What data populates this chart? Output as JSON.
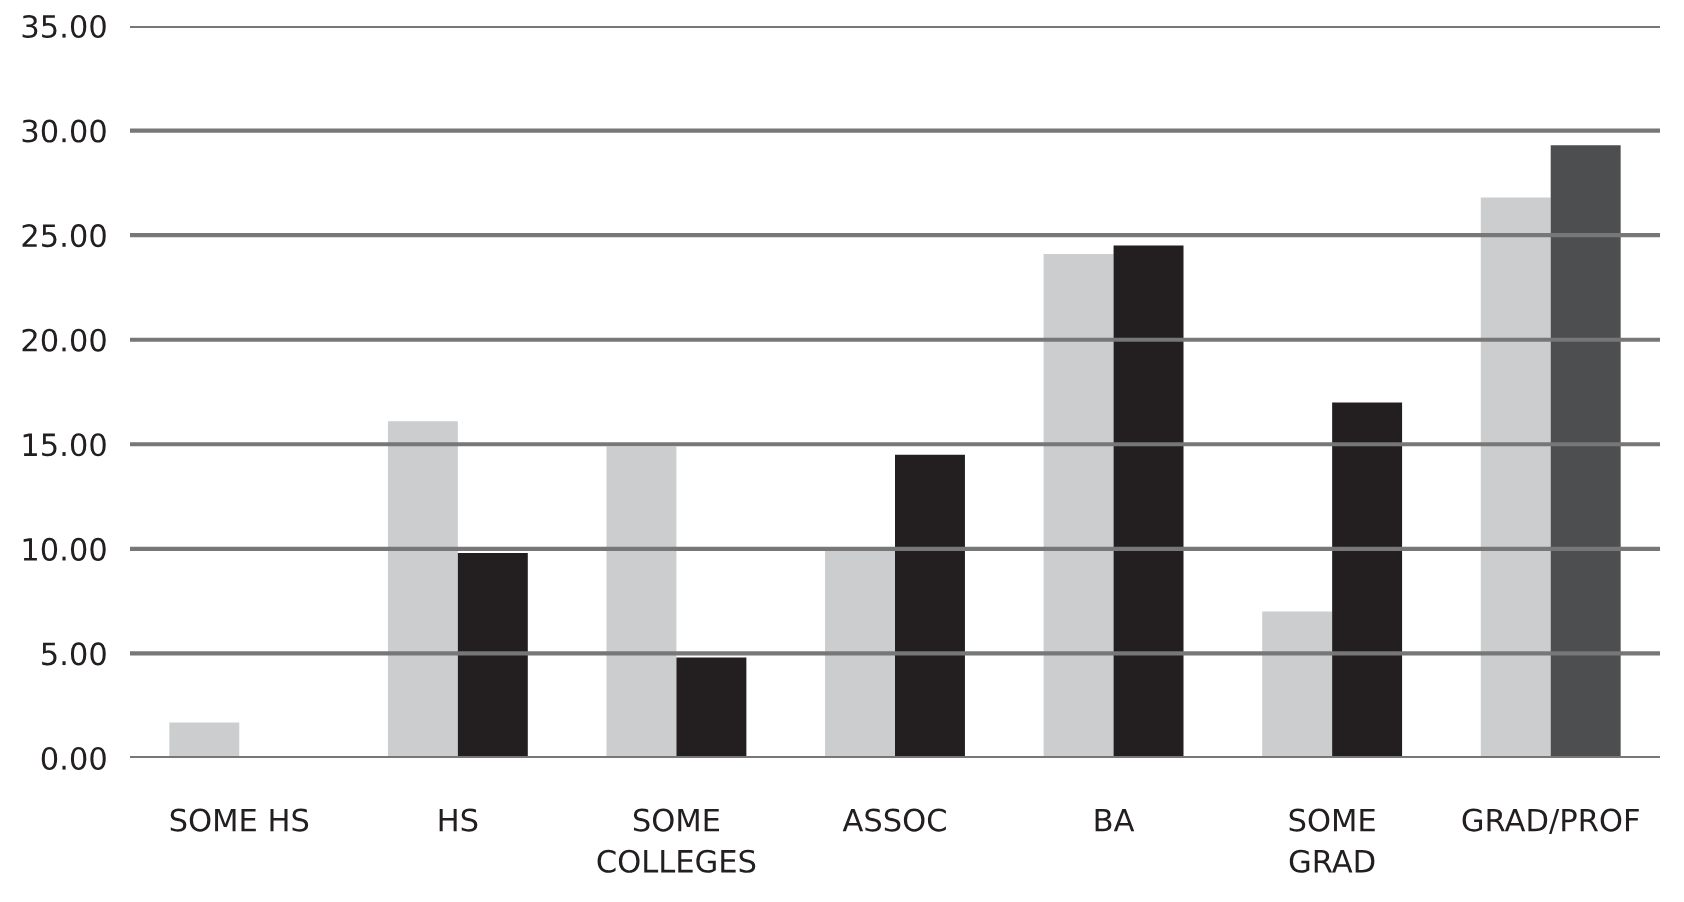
{
  "chart_data": {
    "type": "bar",
    "categories": [
      "SOME HS",
      "HS",
      "SOME\nCOLLEGES",
      "ASSOC",
      "BA",
      "SOME\nGRAD",
      "GRAD/PROF"
    ],
    "series": [
      {
        "color": "#cccdcf",
        "values": [
          1.7,
          16.1,
          14.9,
          10.0,
          24.1,
          7.0,
          26.8
        ]
      },
      {
        "colors": [
          "#231f20",
          "#231f20",
          "#231f20",
          "#231f20",
          "#231f20",
          "#231f20",
          "#4d4e50"
        ],
        "values": [
          null,
          9.8,
          4.8,
          14.5,
          24.5,
          17.0,
          29.3
        ]
      }
    ],
    "ylim": [
      0,
      35
    ],
    "yticks": [
      {
        "value": 0,
        "label": "0.00"
      },
      {
        "value": 5,
        "label": "5.00"
      },
      {
        "value": 10,
        "label": "10.00"
      },
      {
        "value": 15,
        "label": "15.00"
      },
      {
        "value": 20,
        "label": "20.00"
      },
      {
        "value": 25,
        "label": "25.00"
      },
      {
        "value": 30,
        "label": "30.00"
      },
      {
        "value": 35,
        "label": "35.00"
      }
    ],
    "grid": "y"
  }
}
